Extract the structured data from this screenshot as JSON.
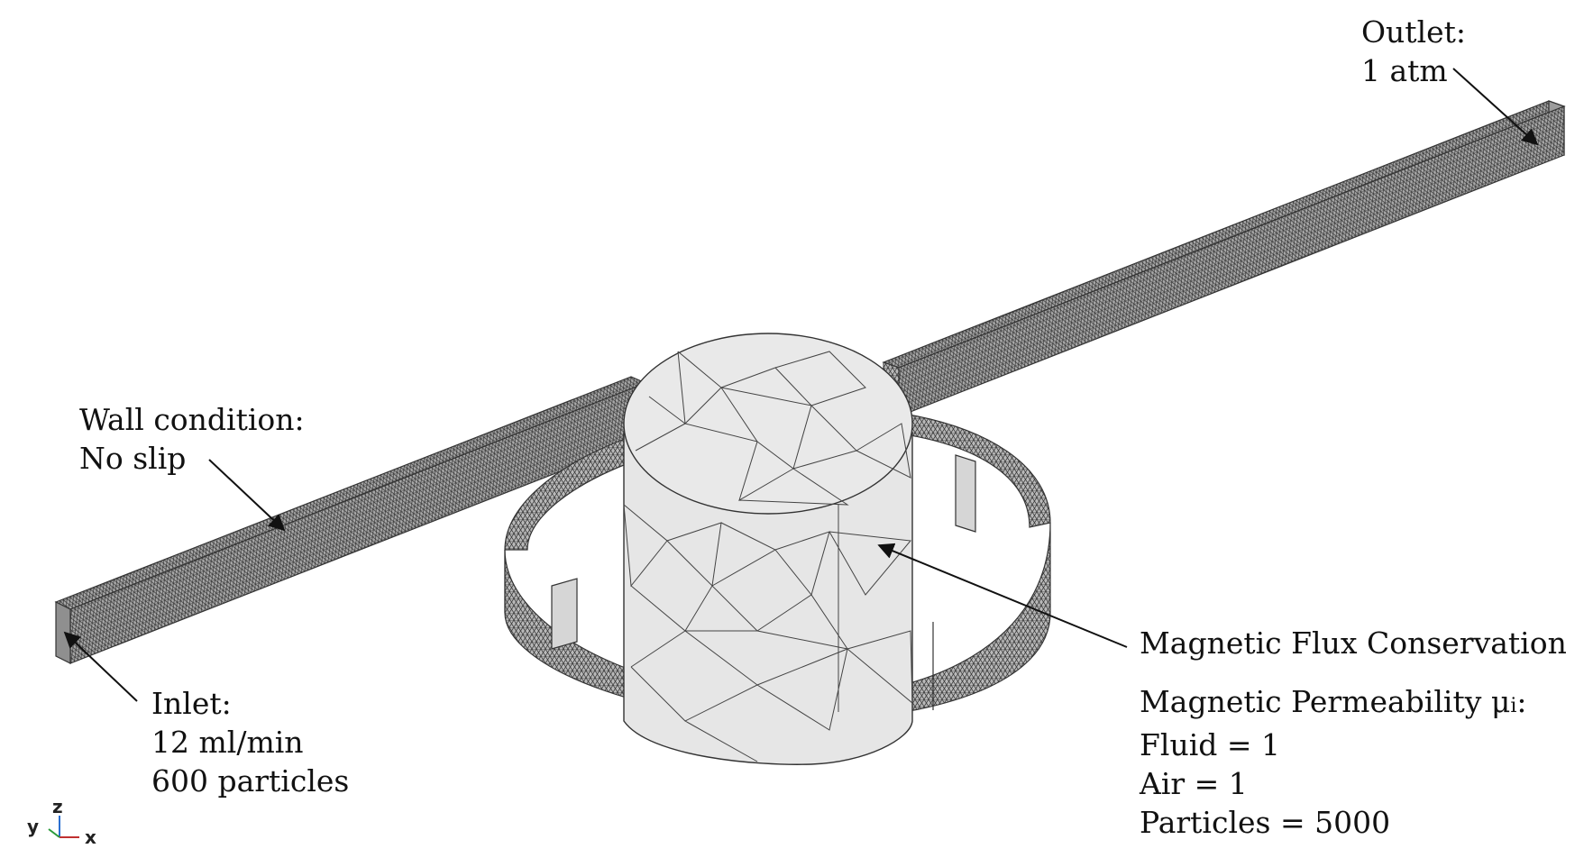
{
  "annotations": {
    "outlet": {
      "line1": "Outlet:",
      "line2": "1 atm"
    },
    "wall": {
      "line1": "Wall condition:",
      "line2": "No slip"
    },
    "inlet": {
      "line1": "Inlet:",
      "line2": "12 ml/min",
      "line3": "600 particles"
    },
    "magnetic": {
      "flux": "Magnetic Flux Conservation",
      "permeability_label": "Magnetic Permeability μ",
      "permeability_sub": "i",
      "permeability_colon": ":",
      "fluid": "Fluid = 1",
      "air": "Air = 1",
      "particles": "Particles = 5000"
    }
  },
  "axes_triad": {
    "y": "y",
    "z": "z",
    "x": "x"
  },
  "colors": {
    "mesh_fill": "#e8e8e8",
    "mesh_dense": "#8a8a8a",
    "mesh_line": "#3a3a3a",
    "arrow": "#111111"
  }
}
